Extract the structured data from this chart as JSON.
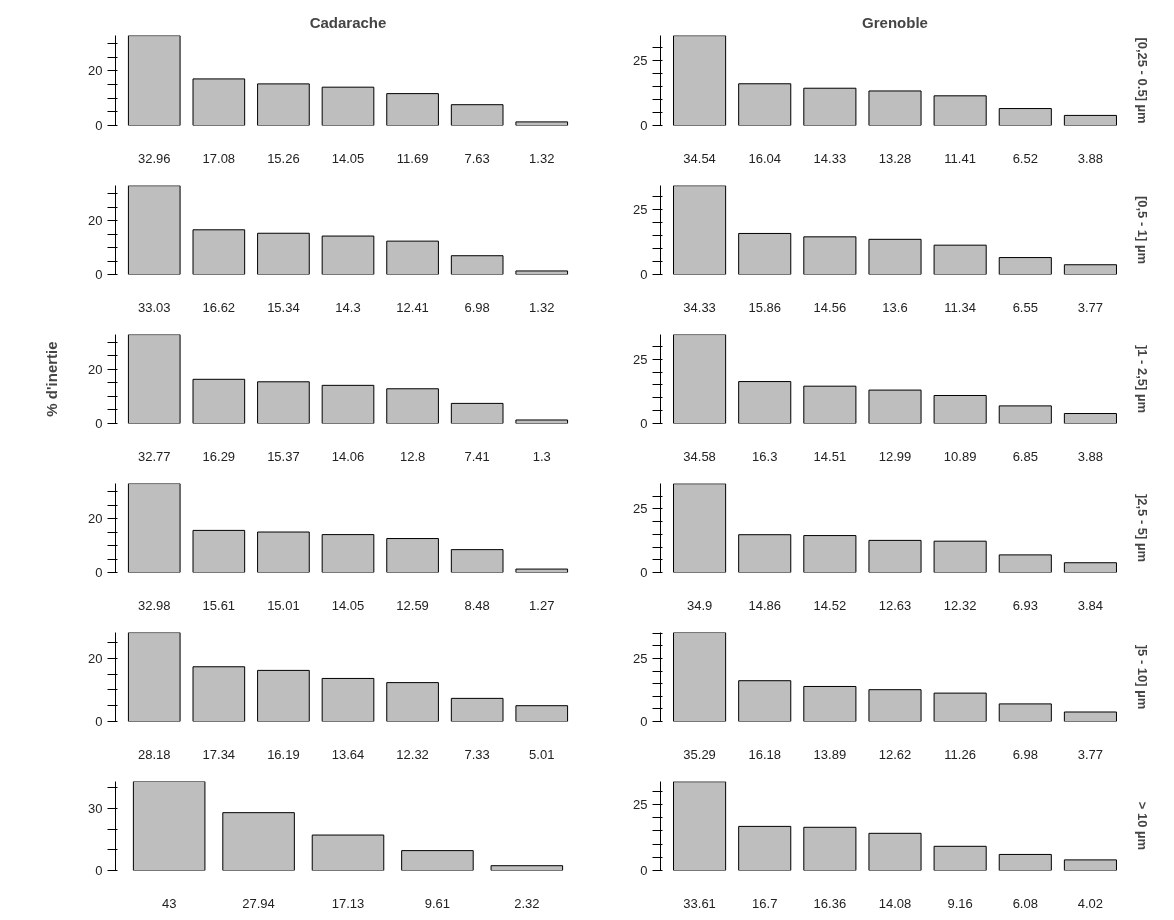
{
  "chart_data": [
    {
      "type": "bar",
      "title": "Cadarache",
      "categories": [
        "32.96",
        "17.08",
        "15.26",
        "14.05",
        "11.69",
        "7.63",
        "1.32"
      ],
      "values": [
        32.96,
        17.08,
        15.26,
        14.05,
        11.69,
        7.63,
        1.32
      ],
      "color": "#bebebe",
      "ylim": [
        0,
        33
      ],
      "yticks": [
        0,
        {
          "value": 5,
          "label": null
        },
        {
          "value": 10,
          "label": null
        },
        {
          "value": 15,
          "label": null
        },
        20,
        {
          "value": 25,
          "label": null
        },
        {
          "value": 30,
          "label": null
        }
      ],
      "grid": false
    },
    {
      "type": "bar",
      "title": "Grenoble",
      "y2label": "[0,25 - 0.5] µm",
      "categories": [
        "34.54",
        "16.04",
        "14.33",
        "13.28",
        "11.41",
        "6.52",
        "3.88"
      ],
      "values": [
        34.54,
        16.04,
        14.33,
        13.28,
        11.41,
        6.52,
        3.88
      ],
      "color": "#bebebe",
      "ylim": [
        0,
        34.6
      ],
      "yticks": [
        0,
        {
          "value": 5,
          "label": null
        },
        {
          "value": 10,
          "label": null
        },
        {
          "value": 15,
          "label": null
        },
        {
          "value": 20,
          "label": null
        },
        25,
        {
          "value": 30,
          "label": null
        }
      ],
      "grid": false
    },
    {
      "type": "bar",
      "categories": [
        "33.03",
        "16.62",
        "15.34",
        "14.3",
        "12.41",
        "6.98",
        "1.32"
      ],
      "values": [
        33.03,
        16.62,
        15.34,
        14.3,
        12.41,
        6.98,
        1.32
      ],
      "color": "#bebebe",
      "ylim": [
        0,
        33.1
      ],
      "yticks": [
        0,
        {
          "value": 5,
          "label": null
        },
        {
          "value": 10,
          "label": null
        },
        {
          "value": 15,
          "label": null
        },
        20,
        {
          "value": 25,
          "label": null
        },
        {
          "value": 30,
          "label": null
        }
      ],
      "grid": false
    },
    {
      "type": "bar",
      "y2label": "[0,5 - 1] µm",
      "categories": [
        "34.33",
        "15.86",
        "14.56",
        "13.6",
        "11.34",
        "6.55",
        "3.77"
      ],
      "values": [
        34.33,
        15.86,
        14.56,
        13.6,
        11.34,
        6.55,
        3.77
      ],
      "color": "#bebebe",
      "ylim": [
        0,
        34.4
      ],
      "yticks": [
        0,
        {
          "value": 5,
          "label": null
        },
        {
          "value": 10,
          "label": null
        },
        {
          "value": 15,
          "label": null
        },
        {
          "value": 20,
          "label": null
        },
        25,
        {
          "value": 30,
          "label": null
        }
      ],
      "grid": false
    },
    {
      "type": "bar",
      "ylabel": "% d'inertie",
      "categories": [
        "32.77",
        "16.29",
        "15.37",
        "14.06",
        "12.8",
        "7.41",
        "1.3"
      ],
      "values": [
        32.77,
        16.29,
        15.37,
        14.06,
        12.8,
        7.41,
        1.3
      ],
      "color": "#bebebe",
      "ylim": [
        0,
        32.8
      ],
      "yticks": [
        0,
        {
          "value": 5,
          "label": null
        },
        {
          "value": 10,
          "label": null
        },
        {
          "value": 15,
          "label": null
        },
        20,
        {
          "value": 25,
          "label": null
        },
        {
          "value": 30,
          "label": null
        }
      ],
      "grid": false
    },
    {
      "type": "bar",
      "y2label": "]1 - 2,5] µm",
      "categories": [
        "34.58",
        "16.3",
        "14.51",
        "12.99",
        "10.89",
        "6.85",
        "3.88"
      ],
      "values": [
        34.58,
        16.3,
        14.51,
        12.99,
        10.89,
        6.85,
        3.88
      ],
      "color": "#bebebe",
      "ylim": [
        0,
        34.6
      ],
      "yticks": [
        0,
        {
          "value": 5,
          "label": null
        },
        {
          "value": 10,
          "label": null
        },
        {
          "value": 15,
          "label": null
        },
        {
          "value": 20,
          "label": null
        },
        25,
        {
          "value": 30,
          "label": null
        }
      ],
      "grid": false
    },
    {
      "type": "bar",
      "categories": [
        "32.98",
        "15.61",
        "15.01",
        "14.05",
        "12.59",
        "8.48",
        "1.27"
      ],
      "values": [
        32.98,
        15.61,
        15.01,
        14.05,
        12.59,
        8.48,
        1.27
      ],
      "color": "#bebebe",
      "ylim": [
        0,
        33
      ],
      "yticks": [
        0,
        {
          "value": 5,
          "label": null
        },
        {
          "value": 10,
          "label": null
        },
        {
          "value": 15,
          "label": null
        },
        20,
        {
          "value": 25,
          "label": null
        },
        {
          "value": 30,
          "label": null
        }
      ],
      "grid": false
    },
    {
      "type": "bar",
      "y2label": "]2,5 - 5] µm",
      "categories": [
        "34.9",
        "14.86",
        "14.52",
        "12.63",
        "12.32",
        "6.93",
        "3.84"
      ],
      "values": [
        34.9,
        14.86,
        14.52,
        12.63,
        12.32,
        6.93,
        3.84
      ],
      "color": "#bebebe",
      "ylim": [
        0,
        35
      ],
      "yticks": [
        0,
        {
          "value": 5,
          "label": null
        },
        {
          "value": 10,
          "label": null
        },
        {
          "value": 15,
          "label": null
        },
        {
          "value": 20,
          "label": null
        },
        25,
        {
          "value": 30,
          "label": null
        }
      ],
      "grid": false
    },
    {
      "type": "bar",
      "categories": [
        "28.18",
        "17.34",
        "16.19",
        "13.64",
        "12.32",
        "7.33",
        "5.01"
      ],
      "values": [
        28.18,
        17.34,
        16.19,
        13.64,
        12.32,
        7.33,
        5.01
      ],
      "color": "#bebebe",
      "ylim": [
        0,
        28.2
      ],
      "yticks": [
        0,
        {
          "value": 5,
          "label": null
        },
        {
          "value": 10,
          "label": null
        },
        {
          "value": 15,
          "label": null
        },
        20,
        {
          "value": 25,
          "label": null
        }
      ],
      "grid": false
    },
    {
      "type": "bar",
      "y2label": "]5 - 10] µm",
      "categories": [
        "35.29",
        "16.18",
        "13.89",
        "12.62",
        "11.26",
        "6.98",
        "3.77"
      ],
      "values": [
        35.29,
        16.18,
        13.89,
        12.62,
        11.26,
        6.98,
        3.77
      ],
      "color": "#bebebe",
      "ylim": [
        0,
        35.3
      ],
      "yticks": [
        0,
        {
          "value": 5,
          "label": null
        },
        {
          "value": 10,
          "label": null
        },
        {
          "value": 15,
          "label": null
        },
        {
          "value": 20,
          "label": null
        },
        25,
        {
          "value": 30,
          "label": null
        },
        {
          "value": 35,
          "label": null
        }
      ],
      "grid": false
    },
    {
      "type": "bar",
      "categories": [
        "43",
        "27.94",
        "17.13",
        "9.61",
        "2.32"
      ],
      "values": [
        43,
        27.94,
        17.13,
        9.61,
        2.32
      ],
      "color": "#bebebe",
      "ylim": [
        0,
        43
      ],
      "yticks": [
        0,
        {
          "value": 10,
          "label": null
        },
        {
          "value": 20,
          "label": null
        },
        30,
        {
          "value": 40,
          "label": null
        }
      ],
      "grid": false
    },
    {
      "type": "bar",
      "y2label": "> 10 µm",
      "categories": [
        "33.61",
        "16.7",
        "16.36",
        "14.08",
        "9.16",
        "6.08",
        "4.02"
      ],
      "values": [
        33.61,
        16.7,
        16.36,
        14.08,
        9.16,
        6.08,
        4.02
      ],
      "color": "#bebebe",
      "ylim": [
        0,
        33.7
      ],
      "yticks": [
        0,
        {
          "value": 5,
          "label": null
        },
        {
          "value": 10,
          "label": null
        },
        {
          "value": 15,
          "label": null
        },
        {
          "value": 20,
          "label": null
        },
        25,
        {
          "value": 30,
          "label": null
        }
      ],
      "grid": false
    }
  ]
}
